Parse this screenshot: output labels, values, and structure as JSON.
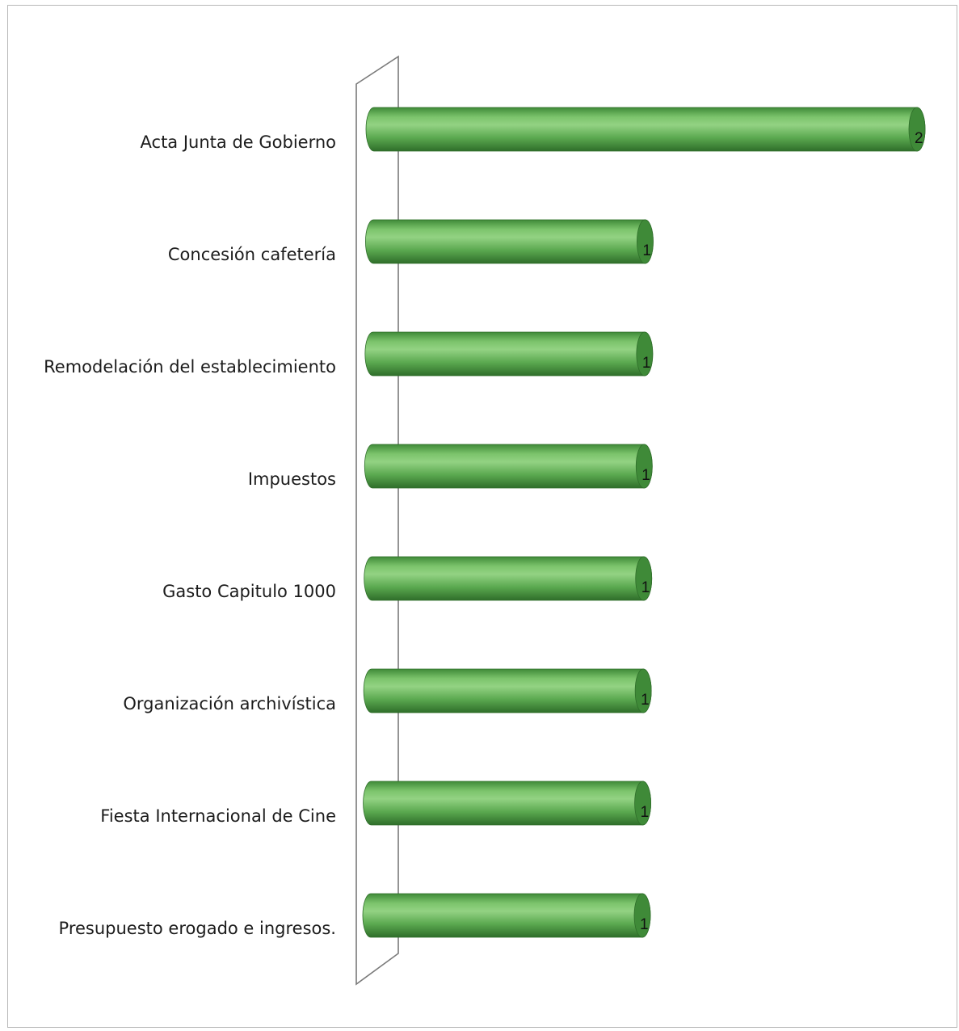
{
  "chart_data": {
    "type": "bar",
    "orientation": "horizontal",
    "style": "3d-cylinder",
    "categories": [
      "Acta Junta de Gobierno",
      "Concesión cafetería",
      "Remodelación del establecimiento",
      "Impuestos",
      "Gasto Capitulo 1000",
      "Organización archivística",
      "Fiesta Internacional de Cine",
      "Presupuesto erogado e ingresos."
    ],
    "values": [
      2,
      1,
      1,
      1,
      1,
      1,
      1,
      1
    ],
    "data_labels": [
      "2",
      "1",
      "1",
      "1",
      "1",
      "1",
      "1",
      "1"
    ],
    "xlim": [
      0,
      2
    ],
    "grid": false,
    "legend": "none",
    "colors": {
      "bar_fill": "#5aa84f",
      "bar_light": "#93d283",
      "bar_dark": "#2f6e2a",
      "bar_end": "#3f8a38",
      "wall_stroke": "#7a7a7a"
    }
  }
}
